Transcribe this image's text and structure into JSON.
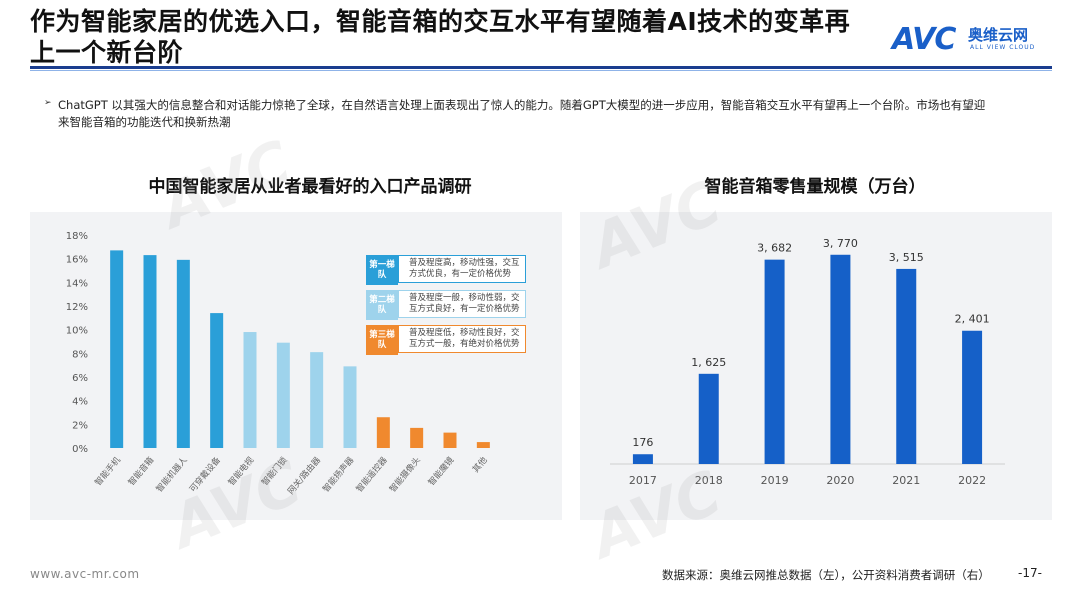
{
  "header": {
    "title": "作为智能家居的优选入口，智能音箱的交互水平有望随着AI技术的变革再上一个新台阶",
    "logo_mark": "AVC",
    "logo_cn": "奥维云网",
    "logo_en": "ALL VIEW CLOUD"
  },
  "bullet": {
    "mark": "➢",
    "text": "ChatGPT 以其强大的信息整合和对话能力惊艳了全球，在自然语言处理上面表现出了惊人的能力。随着GPT大模型的进一步应用，智能音箱交互水平有望再上一个台阶。市场也有望迎来智能音箱的功能迭代和换新热潮"
  },
  "footer": {
    "url": "www.avc-mr.com",
    "source": "数据来源：奥维云网推总数据（左），公开资料消费者调研（右）",
    "page": "-17-"
  },
  "colors": {
    "tier1": "#2a9fd8",
    "tier2": "#9ed3ec",
    "tier3": "#f0892e",
    "retail_bar": "#1560c8"
  },
  "chart_data": [
    {
      "type": "bar",
      "title": "中国智能家居从业者最看好的入口产品调研",
      "categories": [
        "智能手机",
        "智能音箱",
        "智能机器人",
        "可穿戴设备",
        "智能电视",
        "智能门锁",
        "网关/路由器",
        "智能扬声器",
        "智能遥控器",
        "智能摄像头",
        "智能魔镜",
        "其他"
      ],
      "values": [
        16.7,
        16.3,
        15.9,
        11.4,
        9.8,
        8.9,
        8.1,
        6.9,
        2.6,
        1.7,
        1.3,
        0.5
      ],
      "tiers": [
        1,
        1,
        1,
        1,
        2,
        2,
        2,
        2,
        3,
        3,
        3,
        3
      ],
      "ylim": [
        0,
        18
      ],
      "yticks": [
        "0%",
        "2%",
        "4%",
        "6%",
        "8%",
        "10%",
        "12%",
        "14%",
        "16%",
        "18%"
      ],
      "legend": [
        {
          "tag": "第一梯队",
          "desc": "普及程度高，移动性强，交互方式优良，有一定价格优势"
        },
        {
          "tag": "第二梯队",
          "desc": "普及程度一般，移动性弱，交互方式良好，有一定价格优势"
        },
        {
          "tag": "第三梯队",
          "desc": "普及程度低，移动性良好，交互方式一般，有绝对价格优势"
        }
      ]
    },
    {
      "type": "bar",
      "title": "智能音箱零售量规模（万台）",
      "categories": [
        "2017",
        "2018",
        "2019",
        "2020",
        "2021",
        "2022"
      ],
      "values": [
        176,
        1625,
        3682,
        3770,
        3515,
        2401
      ],
      "value_labels": [
        "176",
        "1, 625",
        "3, 682",
        "3, 770",
        "3, 515",
        "2, 401"
      ],
      "ylim": [
        0,
        4000
      ]
    }
  ]
}
